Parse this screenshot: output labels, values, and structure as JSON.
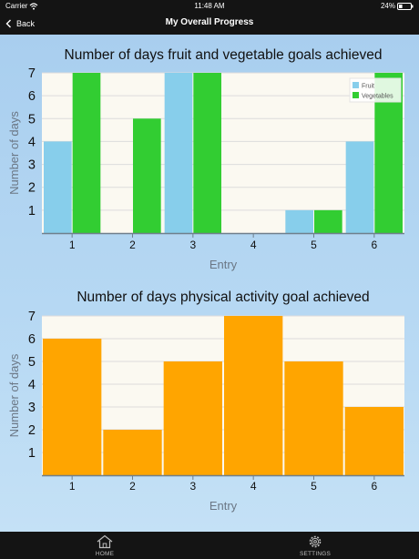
{
  "status_bar": {
    "carrier": "Carrier",
    "time": "11:48 AM",
    "battery": "24%"
  },
  "nav": {
    "back_label": "Back",
    "title": "My Overall Progress"
  },
  "icons": {
    "back": "chevron-left-icon",
    "wifi": "wifi-icon",
    "battery": "battery-icon",
    "home": "home-icon",
    "settings": "gear-icon"
  },
  "colors": {
    "fruit": "#87ceeb",
    "vegetables": "#32cd32",
    "activity": "#ffa500",
    "plot_bg": "#fbf9f1",
    "grid": "#dcdcdc"
  },
  "chart_data": [
    {
      "type": "bar",
      "title": "Number of days fruit and vegetable goals achieved",
      "xlabel": "Entry",
      "ylabel": "Number of days",
      "categories": [
        "1",
        "2",
        "3",
        "4",
        "5",
        "6"
      ],
      "yticks": [
        "1",
        "2",
        "3",
        "4",
        "5",
        "6",
        "7"
      ],
      "ylim": [
        0,
        7
      ],
      "legend": "top-right",
      "series": [
        {
          "name": "Fruit",
          "values": [
            4,
            0,
            7,
            0,
            1,
            4
          ]
        },
        {
          "name": "Vegetables",
          "values": [
            7,
            5,
            7,
            0,
            1,
            7
          ]
        }
      ]
    },
    {
      "type": "bar",
      "title": "Number of days physical activity goal achieved",
      "xlabel": "Entry",
      "ylabel": "Number of days",
      "categories": [
        "1",
        "2",
        "3",
        "4",
        "5",
        "6"
      ],
      "yticks": [
        "1",
        "2",
        "3",
        "4",
        "5",
        "6",
        "7"
      ],
      "ylim": [
        0,
        7
      ],
      "series": [
        {
          "values": [
            6,
            2,
            5,
            7,
            5,
            3
          ]
        }
      ]
    }
  ],
  "tabs": [
    {
      "label": "HOME"
    },
    {
      "label": "SETTINGS"
    }
  ]
}
